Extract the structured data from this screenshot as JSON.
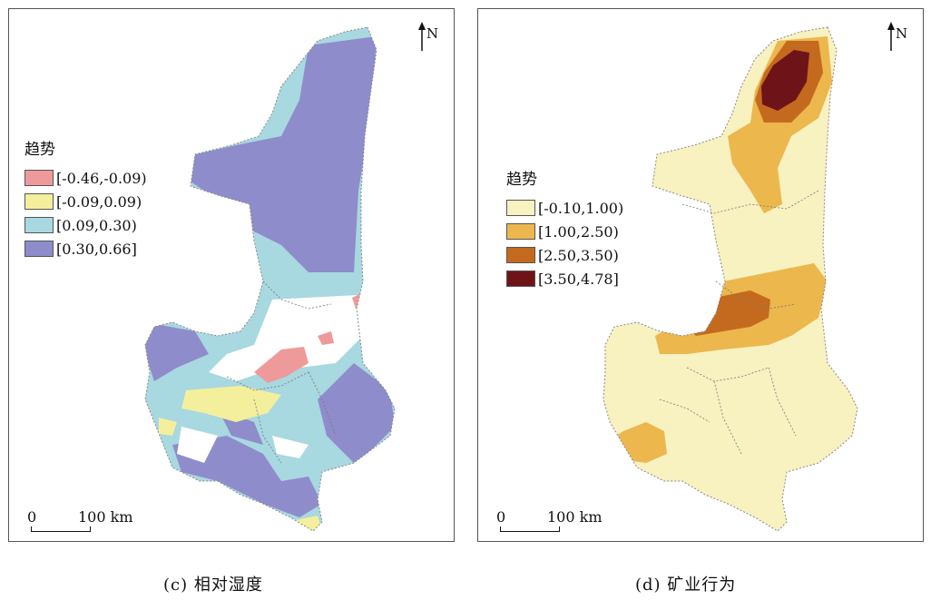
{
  "panels": {
    "c": {
      "caption": "(c) 相对湿度",
      "legend_title": "趋势",
      "legend": [
        {
          "label": "[-0.46,-0.09)",
          "color": "#ef9a9a"
        },
        {
          "label": "[-0.09,0.09)",
          "color": "#f3ef9c"
        },
        {
          "label": "[0.09,0.30)",
          "color": "#a8d8e0"
        },
        {
          "label": "[0.30,0.66]",
          "color": "#8f8ccb"
        }
      ],
      "north": "N",
      "scale_zero": "0",
      "scale_label": "100 km"
    },
    "d": {
      "caption": "(d) 矿业行为",
      "legend_title": "趋势",
      "legend": [
        {
          "label": "[-0.10,1.00)",
          "color": "#f8f1c0"
        },
        {
          "label": "[1.00,2.50)",
          "color": "#ecb74d"
        },
        {
          "label": "[2.50,3.50)",
          "color": "#c46a1f"
        },
        {
          "label": "[3.50,4.78]",
          "color": "#6e1418"
        }
      ],
      "north": "N",
      "scale_zero": "0",
      "scale_label": "100 km"
    }
  }
}
